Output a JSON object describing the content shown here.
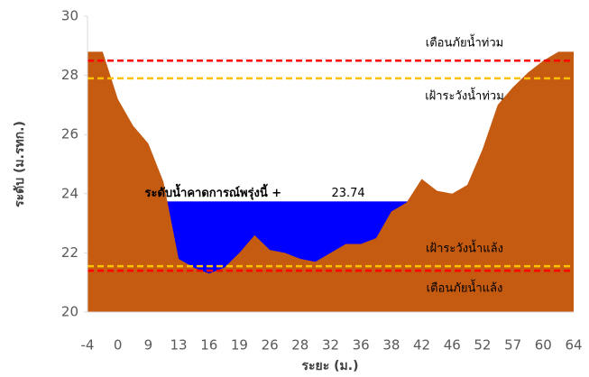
{
  "chart_data": {
    "type": "area",
    "y_label": "ระดับ (ม.รทก.)",
    "x_label": "ระยะ (ม.)",
    "categories": [
      "-4",
      null,
      "0",
      null,
      "9",
      null,
      "13",
      null,
      "16",
      null,
      "19",
      null,
      "26",
      null,
      "28",
      null,
      "32",
      null,
      "36",
      null,
      "38",
      null,
      "42",
      null,
      "46",
      null,
      "52",
      null,
      "57",
      null,
      "60",
      null,
      "64"
    ],
    "values": [
      28.8,
      28.8,
      27.2,
      26.3,
      25.7,
      24.4,
      21.8,
      21.5,
      21.3,
      21.5,
      22.0,
      22.6,
      22.1,
      22.0,
      21.8,
      21.7,
      22.0,
      22.3,
      22.3,
      22.5,
      23.4,
      23.7,
      24.5,
      24.1,
      24.0,
      24.3,
      25.5,
      27.0,
      27.6,
      28.1,
      28.5,
      28.8,
      28.8
    ],
    "color": "#c55a11",
    "water_level": {
      "label": "ระดับน้ำคาดการณ์พรุ่งนี้ +",
      "value": 23.74,
      "color": "#0000ff"
    },
    "lines": [
      {
        "label": "เตือนภัยน้ำท่วม",
        "value": 28.5,
        "color": "#ff0000"
      },
      {
        "label": "เฝ้าระวังน้ำท่วม",
        "value": 27.9,
        "color": "#ffc000"
      },
      {
        "label": "เฝ้าระวังน้ำแล้ง",
        "value": 21.55,
        "color": "#ffc000"
      },
      {
        "label": "เตือนภัยน้ำแล้ง",
        "value": 21.4,
        "color": "#ff0000"
      }
    ],
    "ylim": [
      20,
      30
    ],
    "yticks": [
      20,
      22,
      24,
      26,
      28,
      30
    ]
  }
}
